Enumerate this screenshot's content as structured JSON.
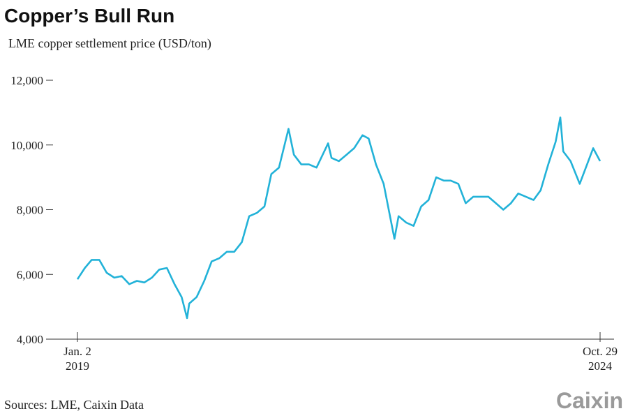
{
  "chart_data": {
    "type": "line",
    "title": "Copper’s Bull Run",
    "subtitle": "LME copper settlement price (USD/ton)",
    "source": "Sources: LME, Caixin Data",
    "brand": "Caixin",
    "xlim": [
      "2019-01-02",
      "2024-10-29"
    ],
    "xticks": [
      {
        "value": "2019-01-02",
        "label": "Jan. 2",
        "sublabel": "2019"
      },
      {
        "value": "2024-10-29",
        "label": "Oct. 29",
        "sublabel": "2024"
      }
    ],
    "ylim": [
      4000,
      12000
    ],
    "yticks": [
      {
        "value": 4000,
        "label": "4,000"
      },
      {
        "value": 6000,
        "label": "6,000"
      },
      {
        "value": 8000,
        "label": "8,000"
      },
      {
        "value": 10000,
        "label": "10,000"
      },
      {
        "value": 12000,
        "label": "12,000"
      }
    ],
    "x": [
      "2019-01-02",
      "2019-02-01",
      "2019-03-01",
      "2019-04-01",
      "2019-05-01",
      "2019-06-01",
      "2019-07-01",
      "2019-08-01",
      "2019-09-01",
      "2019-10-01",
      "2019-11-01",
      "2019-12-01",
      "2020-01-01",
      "2020-02-01",
      "2020-03-01",
      "2020-03-23",
      "2020-04-01",
      "2020-05-01",
      "2020-06-01",
      "2020-07-01",
      "2020-08-01",
      "2020-09-01",
      "2020-10-01",
      "2020-11-01",
      "2020-12-01",
      "2021-01-01",
      "2021-02-01",
      "2021-03-01",
      "2021-04-01",
      "2021-05-10",
      "2021-06-01",
      "2021-07-01",
      "2021-08-01",
      "2021-09-01",
      "2021-10-18",
      "2021-11-01",
      "2021-12-01",
      "2022-01-01",
      "2022-02-01",
      "2022-03-07",
      "2022-04-01",
      "2022-05-01",
      "2022-06-01",
      "2022-07-15",
      "2022-08-01",
      "2022-09-01",
      "2022-10-01",
      "2022-11-01",
      "2022-12-01",
      "2023-01-01",
      "2023-02-01",
      "2023-03-01",
      "2023-04-01",
      "2023-05-01",
      "2023-06-01",
      "2023-07-01",
      "2023-08-01",
      "2023-09-01",
      "2023-10-01",
      "2023-11-01",
      "2023-12-01",
      "2024-01-01",
      "2024-02-01",
      "2024-03-01",
      "2024-04-01",
      "2024-05-01",
      "2024-05-20",
      "2024-06-01",
      "2024-07-01",
      "2024-08-07",
      "2024-09-01",
      "2024-10-01",
      "2024-10-29"
    ],
    "series": [
      {
        "name": "LME copper settlement price",
        "color": "#22b2d8",
        "values": [
          5850,
          6200,
          6450,
          6450,
          6050,
          5900,
          5950,
          5700,
          5800,
          5750,
          5900,
          6150,
          6200,
          5700,
          5300,
          4650,
          5100,
          5300,
          5800,
          6400,
          6500,
          6700,
          6700,
          7000,
          7800,
          7900,
          8100,
          9100,
          9300,
          10500,
          9700,
          9400,
          9400,
          9300,
          10050,
          9600,
          9500,
          9700,
          9900,
          10300,
          10200,
          9400,
          8800,
          7100,
          7800,
          7600,
          7500,
          8100,
          8300,
          9000,
          8900,
          8900,
          8800,
          8200,
          8400,
          8400,
          8400,
          8200,
          8000,
          8200,
          8500,
          8400,
          8300,
          8600,
          9400,
          10100,
          10850,
          9800,
          9500,
          8800,
          9300,
          9900,
          9500
        ]
      }
    ]
  }
}
